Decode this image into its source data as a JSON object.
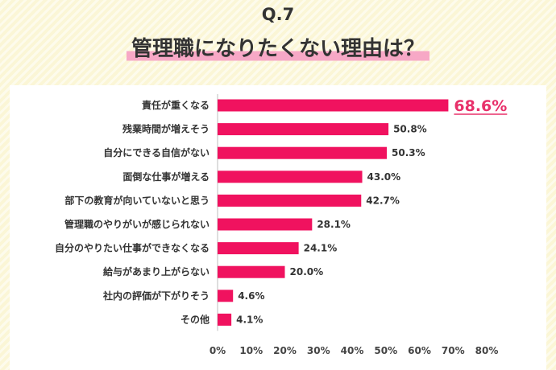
{
  "header": {
    "question": "Q.7",
    "title": "管理職になりたくない理由は？"
  },
  "colors": {
    "bar": "#f0125f",
    "highlight_text": "#e8306a",
    "background": "#fbf6d6"
  },
  "chart_data": {
    "type": "bar",
    "orientation": "horizontal",
    "categories": [
      "責任が重くなる",
      "残業時間が増えそう",
      "自分にできる自信がない",
      "面倒な仕事が増える",
      "部下の教育が向いていないと思う",
      "管理職のやりがいが感じられない",
      "自分のやりたい仕事ができなくなる",
      "給与があまり上がらない",
      "社内の評価が下がりそう",
      "その他"
    ],
    "values": [
      68.6,
      50.8,
      50.3,
      43.0,
      42.7,
      28.1,
      24.1,
      20.0,
      4.6,
      4.1
    ],
    "value_labels": [
      "68.6%",
      "50.8%",
      "50.3%",
      "43.0%",
      "42.7%",
      "28.1%",
      "24.1%",
      "20.0%",
      "4.6%",
      "4.1%"
    ],
    "xlim": [
      0,
      80
    ],
    "xticks": [
      0,
      10,
      20,
      30,
      40,
      50,
      60,
      70,
      80
    ],
    "xtick_labels": [
      "0%",
      "10%",
      "20%",
      "30%",
      "40%",
      "50%",
      "60%",
      "70%",
      "80%"
    ],
    "grid": false,
    "highlight_index": 0
  }
}
